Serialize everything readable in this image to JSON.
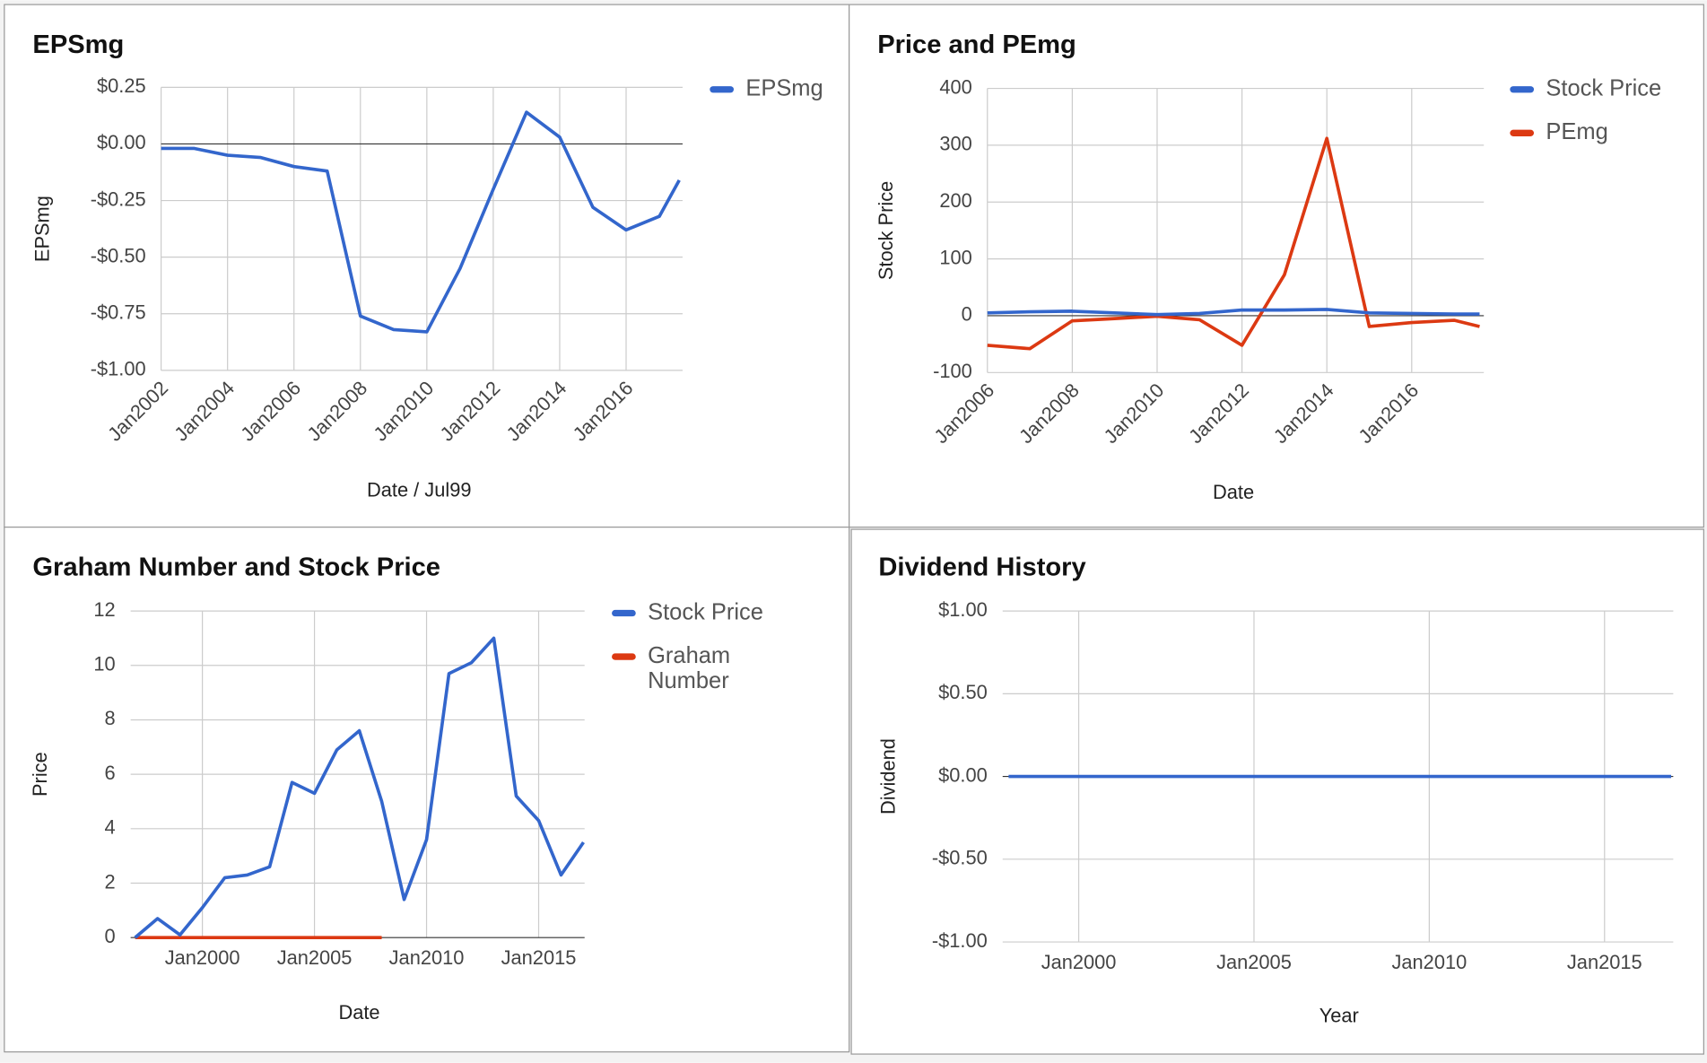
{
  "chart_data": [
    {
      "type": "line",
      "title": "EPSmg",
      "x_label": "Date / Jul99",
      "y_label": "EPSmg",
      "x": [
        2002,
        2003,
        2004,
        2005,
        2006,
        2007,
        2008,
        2009,
        2010,
        2011,
        2012,
        2013,
        2014,
        2015,
        2016,
        2017,
        2017.6
      ],
      "series": [
        {
          "name": "EPSmg",
          "color": "#3366cc",
          "values": [
            -0.02,
            -0.02,
            -0.05,
            -0.06,
            -0.1,
            -0.12,
            -0.76,
            -0.82,
            -0.83,
            -0.55,
            -0.2,
            0.14,
            0.03,
            -0.28,
            -0.38,
            -0.32,
            -0.16
          ]
        }
      ],
      "xlim": [
        2002,
        2017.7
      ],
      "ylim": [
        -1,
        0.25
      ],
      "xticks": [
        {
          "value": 2002,
          "label": "Jan2002"
        },
        {
          "value": 2004,
          "label": "Jan2004"
        },
        {
          "value": 2006,
          "label": "Jan2006"
        },
        {
          "value": 2008,
          "label": "Jan2008"
        },
        {
          "value": 2010,
          "label": "Jan2010"
        },
        {
          "value": 2012,
          "label": "Jan2012"
        },
        {
          "value": 2014,
          "label": "Jan2014"
        },
        {
          "value": 2016,
          "label": "Jan2016"
        }
      ],
      "yticks": [
        {
          "value": -1,
          "label": "-$1.00"
        },
        {
          "value": -0.75,
          "label": "-$0.75"
        },
        {
          "value": -0.5,
          "label": "-$0.50"
        },
        {
          "value": -0.25,
          "label": "-$0.25"
        },
        {
          "value": 0,
          "label": "$0.00"
        },
        {
          "value": 0.25,
          "label": "$0.25"
        }
      ],
      "grid": true,
      "legend": "right"
    },
    {
      "type": "line",
      "title": "Price and PEmg",
      "x_label": "Date",
      "y_label": "Stock Price",
      "x": [
        2006,
        2007,
        2008,
        2009,
        2010,
        2011,
        2012,
        2013,
        2014,
        2015,
        2016,
        2017,
        2017.6
      ],
      "series": [
        {
          "name": "Stock Price",
          "color": "#3366cc",
          "values": [
            5,
            7,
            8,
            5,
            2,
            4,
            10,
            10,
            11,
            5,
            4,
            3,
            3
          ]
        },
        {
          "name": "PEmg",
          "color": "#dc3912",
          "values": [
            -52,
            -58,
            -9,
            -5,
            -1,
            -7,
            -52,
            72,
            312,
            -19,
            -12,
            -8,
            -19
          ]
        }
      ],
      "xlim": [
        2006,
        2017.7
      ],
      "ylim": [
        -100,
        400
      ],
      "xticks": [
        {
          "value": 2006,
          "label": "Jan2006"
        },
        {
          "value": 2008,
          "label": "Jan2008"
        },
        {
          "value": 2010,
          "label": "Jan2010"
        },
        {
          "value": 2012,
          "label": "Jan2012"
        },
        {
          "value": 2014,
          "label": "Jan2014"
        },
        {
          "value": 2016,
          "label": "Jan2016"
        }
      ],
      "yticks": [
        -100,
        0,
        100,
        200,
        300,
        400
      ],
      "grid": true,
      "legend": "right"
    },
    {
      "type": "line",
      "title": "Graham Number and Stock Price",
      "x_label": "Date",
      "y_label": "Price",
      "x": [
        1997,
        1998,
        1999,
        2000,
        2001,
        2002,
        2003,
        2004,
        2005,
        2006,
        2007,
        2008,
        2009,
        2010,
        2011,
        2012,
        2013,
        2014,
        2015,
        2016,
        2017
      ],
      "series": [
        {
          "name": "Stock Price",
          "color": "#3366cc",
          "values": [
            0,
            0.7,
            0.1,
            1.1,
            2.2,
            2.3,
            2.6,
            5.7,
            5.3,
            6.9,
            7.6,
            5.0,
            1.4,
            3.6,
            9.7,
            10.1,
            11.0,
            5.2,
            4.3,
            2.3,
            3.5
          ]
        },
        {
          "name": "Graham Number",
          "color": "#dc3912",
          "values": [
            0,
            0,
            0,
            0,
            0,
            0,
            0,
            0,
            0,
            0,
            0,
            0,
            null,
            null,
            null,
            null,
            null,
            null,
            null,
            null,
            null
          ]
        }
      ],
      "xlim": [
        1996.8,
        2017.05
      ],
      "ylim": [
        0,
        12
      ],
      "xticks": [
        {
          "value": 2000,
          "label": "Jan2000"
        },
        {
          "value": 2005,
          "label": "Jan2005"
        },
        {
          "value": 2010,
          "label": "Jan2010"
        },
        {
          "value": 2015,
          "label": "Jan2015"
        }
      ],
      "yticks": [
        0,
        2,
        4,
        6,
        8,
        10,
        12
      ],
      "grid": true,
      "legend": "right"
    },
    {
      "type": "line",
      "title": "Dividend History",
      "x_label": "Year",
      "y_label": "Dividend",
      "x": [
        1998,
        1999,
        2000,
        2001,
        2002,
        2003,
        2004,
        2005,
        2006,
        2007,
        2008,
        2009,
        2010,
        2011,
        2012,
        2013,
        2014,
        2015,
        2016,
        2016.9
      ],
      "series": [
        {
          "color": "#3366cc",
          "values": [
            0,
            0,
            0,
            0,
            0,
            0,
            0,
            0,
            0,
            0,
            0,
            0,
            0,
            0,
            0,
            0,
            0,
            0,
            0,
            0
          ]
        }
      ],
      "xlim": [
        1997.83,
        2016.96
      ],
      "ylim": [
        -1,
        1
      ],
      "xticks": [
        {
          "value": 2000,
          "label": "Jan2000"
        },
        {
          "value": 2005,
          "label": "Jan2005"
        },
        {
          "value": 2010,
          "label": "Jan2010"
        },
        {
          "value": 2015,
          "label": "Jan2015"
        }
      ],
      "yticks": [
        {
          "value": -1,
          "label": "-$1.00"
        },
        {
          "value": -0.5,
          "label": "-$0.50"
        },
        {
          "value": 0,
          "label": "$0.00"
        },
        {
          "value": 0.5,
          "label": "$0.50"
        },
        {
          "value": 1,
          "label": "$1.00"
        }
      ],
      "grid": true,
      "legend": "none"
    }
  ]
}
